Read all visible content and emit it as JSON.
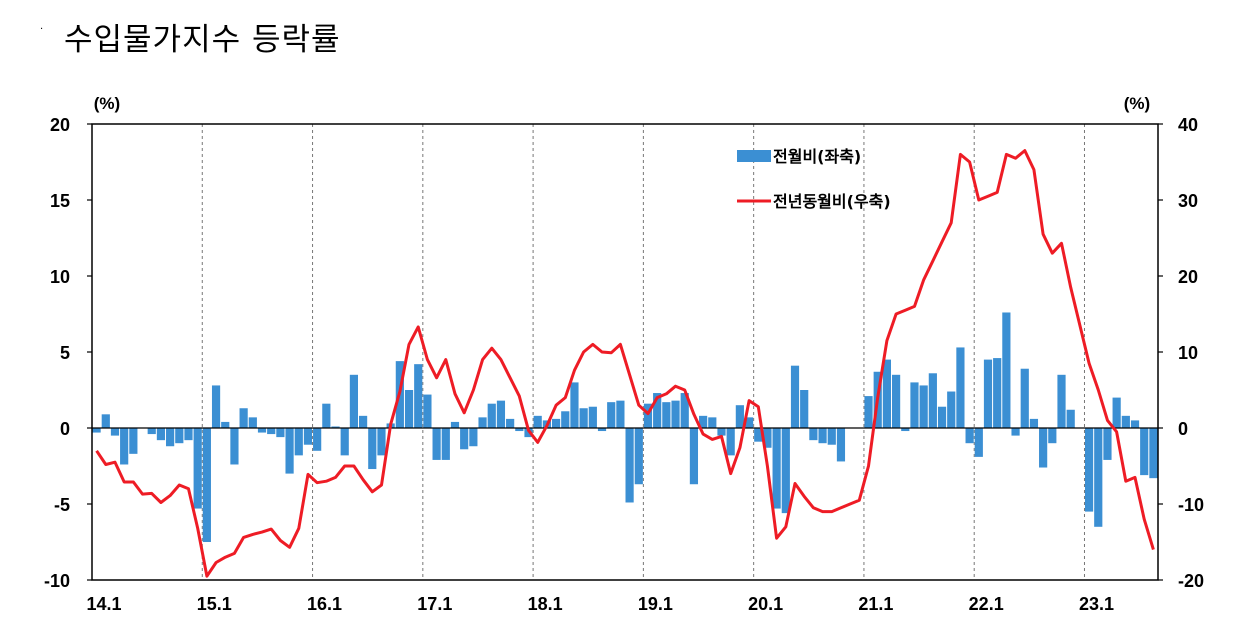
{
  "title": "수입물가지수 등락률",
  "chart_data": {
    "type": "bar+line",
    "left_axis_unit": "(%)",
    "right_axis_unit": "(%)",
    "ylim_left": [
      -10,
      20
    ],
    "ylim_right": [
      -20,
      40
    ],
    "yticks_left": [
      "20",
      "15",
      "10",
      "5",
      "0",
      "-5",
      "-10"
    ],
    "yticks_right": [
      "40",
      "30",
      "20",
      "10",
      "0",
      "-10",
      "-20"
    ],
    "xticks": [
      "14.1",
      "15.1",
      "16.1",
      "17.1",
      "18.1",
      "19.1",
      "20.1",
      "21.1",
      "22.1",
      "23.1"
    ],
    "grid": "vertical dashed at year starts",
    "legend_position": "top-right",
    "series": [
      {
        "name": "전월비(좌축)",
        "type": "bar",
        "axis": "left",
        "color": "#3b8fd3",
        "values": [
          -0.3,
          0.9,
          -0.5,
          -2.4,
          -1.7,
          0.0,
          -0.4,
          -0.8,
          -1.2,
          -1.0,
          -0.8,
          -5.3,
          -7.5,
          2.8,
          0.4,
          -2.4,
          1.3,
          0.7,
          -0.3,
          -0.4,
          -0.6,
          -3.0,
          -1.8,
          -1.1,
          -1.5,
          1.6,
          0.1,
          -1.8,
          3.5,
          0.8,
          -2.7,
          -1.8,
          0.3,
          4.4,
          2.5,
          4.2,
          2.2,
          -2.1,
          -2.1,
          0.4,
          -1.4,
          -1.2,
          0.7,
          1.6,
          1.8,
          0.6,
          -0.2,
          -0.6,
          0.8,
          0.5,
          0.6,
          1.1,
          3.0,
          1.3,
          1.4,
          -0.2,
          1.7,
          1.8,
          -4.9,
          -3.7,
          1.6,
          2.3,
          1.7,
          1.8,
          2.3,
          -3.7,
          0.8,
          0.7,
          -0.5,
          -1.8,
          1.5,
          0.7,
          -0.9,
          -1.3,
          -5.3,
          -5.6,
          4.1,
          2.5,
          -0.8,
          -1.0,
          -1.1,
          -2.2,
          0.0,
          0.0,
          2.1,
          3.7,
          4.5,
          3.5,
          -0.2,
          3.0,
          2.8,
          3.6,
          1.4,
          2.4,
          5.3,
          -1.0,
          -1.9,
          4.5,
          4.6,
          7.6,
          -0.5,
          3.9,
          0.6,
          -2.6,
          -1.0,
          3.5,
          1.2,
          0.0,
          -5.5,
          -6.5,
          -2.1,
          2.0,
          0.8,
          0.5,
          -3.1,
          -3.3
        ]
      },
      {
        "name": "전년동월비(우축)",
        "type": "line",
        "axis": "right",
        "color": "#ee1c25",
        "values": [
          -3.0,
          -4.8,
          -4.5,
          -7.1,
          -7.1,
          -8.7,
          -8.6,
          -9.8,
          -8.9,
          -7.5,
          -8.0,
          -13.2,
          -19.5,
          -17.7,
          -17.0,
          -16.5,
          -14.4,
          -14.0,
          -13.7,
          -13.3,
          -14.8,
          -15.7,
          -13.2,
          -6.1,
          -7.2,
          -7.0,
          -6.5,
          -5.0,
          -5.0,
          -6.8,
          -8.4,
          -7.5,
          0.5,
          4.8,
          11.0,
          13.3,
          9.0,
          6.6,
          9.0,
          4.5,
          2.0,
          5.0,
          9.0,
          10.5,
          9.0,
          6.6,
          4.2,
          -0.3,
          -1.9,
          0.3,
          3.0,
          4.0,
          7.6,
          10.0,
          11.0,
          10.0,
          9.9,
          11.0,
          7.0,
          3.0,
          1.9,
          4.0,
          4.5,
          5.5,
          5.0,
          1.8,
          -0.8,
          -1.5,
          -1.1,
          -6.0,
          -2.6,
          3.6,
          2.8,
          -5.0,
          -14.5,
          -13.0,
          -7.3,
          -9.0,
          -10.5,
          -11.0,
          -11.0,
          -10.5,
          -10.0,
          -9.5,
          -5.0,
          4.0,
          11.5,
          15.0,
          15.5,
          16.0,
          19.5,
          22.0,
          24.5,
          27.0,
          36.0,
          35.0,
          30.0,
          30.5,
          31.0,
          36.0,
          35.5,
          36.5,
          34.0,
          25.5,
          23.0,
          24.3,
          18.5,
          13.5,
          8.5,
          5.0,
          1.0,
          -0.5,
          -7.0,
          -6.5,
          -12.0,
          -16.0
        ]
      }
    ]
  }
}
